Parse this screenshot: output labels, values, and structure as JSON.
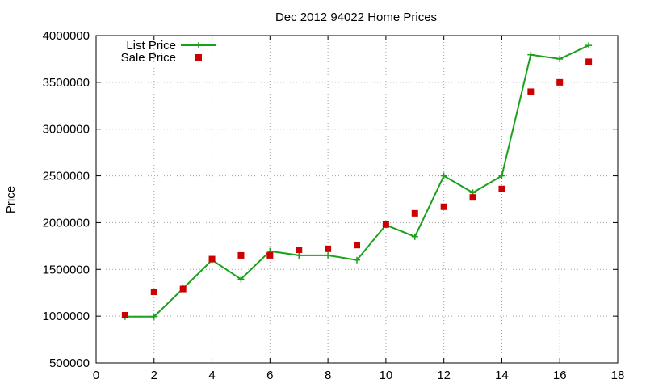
{
  "chart_data": {
    "type": "line",
    "title": "Dec 2012 94022 Home Prices",
    "xlabel": "",
    "ylabel": "Price",
    "xlim": [
      0,
      18
    ],
    "ylim": [
      500000,
      4000000
    ],
    "x_ticks": [
      0,
      2,
      4,
      6,
      8,
      10,
      12,
      14,
      16,
      18
    ],
    "y_ticks": [
      500000,
      1000000,
      1500000,
      2000000,
      2500000,
      3000000,
      3500000,
      4000000
    ],
    "grid": true,
    "legend_position": "top-left",
    "series": [
      {
        "name": "List Price",
        "style": "line-with-plus-markers",
        "color": "#1aa01a",
        "x": [
          1,
          2,
          3,
          4,
          5,
          6,
          7,
          8,
          9,
          10,
          11,
          12,
          13,
          14,
          15,
          16,
          17
        ],
        "y": [
          995000,
          995000,
          1295000,
          1600000,
          1395000,
          1695000,
          1650000,
          1650000,
          1600000,
          1975000,
          1850000,
          2500000,
          2320000,
          2500000,
          3795000,
          3750000,
          3895000
        ]
      },
      {
        "name": "Sale Price",
        "style": "square-markers",
        "color": "#cc0000",
        "x": [
          1,
          2,
          3,
          4,
          5,
          6,
          7,
          8,
          9,
          10,
          11,
          12,
          13,
          14,
          15,
          16,
          17
        ],
        "y": [
          1010000,
          1260000,
          1290000,
          1610000,
          1650000,
          1650000,
          1710000,
          1720000,
          1760000,
          1980000,
          2100000,
          2170000,
          2270000,
          2360000,
          3400000,
          3500000,
          3720000
        ]
      }
    ]
  }
}
